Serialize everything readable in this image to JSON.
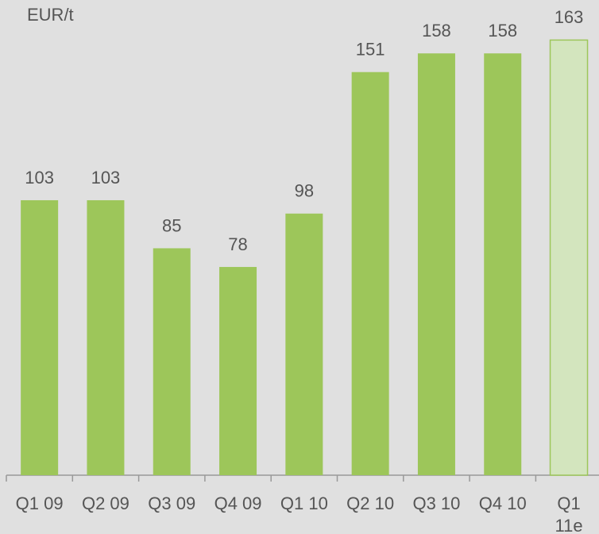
{
  "chart_data": {
    "type": "bar",
    "y_label": "EUR/t",
    "categories": [
      "Q1 09",
      "Q2 09",
      "Q3 09",
      "Q4 09",
      "Q1 10",
      "Q2 10",
      "Q3 10",
      "Q4 10",
      "Q1 11e"
    ],
    "values": [
      103,
      103,
      85,
      78,
      98,
      151,
      158,
      158,
      163
    ],
    "colors": [
      "#9dc65a",
      "#9dc65a",
      "#9dc65a",
      "#9dc65a",
      "#9dc65a",
      "#9dc65a",
      "#9dc65a",
      "#9dc65a",
      "#d3e5be"
    ],
    "edge_color": "#9dc65a",
    "ylim": [
      0,
      178
    ]
  }
}
